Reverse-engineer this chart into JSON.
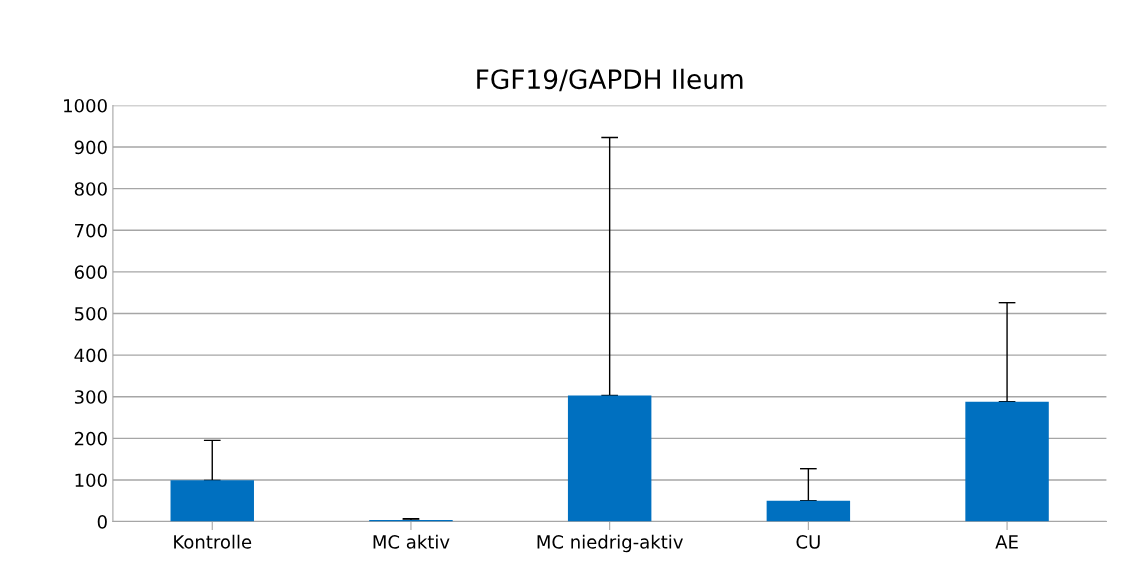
{
  "chart_data": {
    "type": "bar",
    "title": "FGF19/GAPDH Ileum",
    "categories": [
      "Kontrolle",
      "MC aktiv",
      "MC niedrig-aktiv",
      "CU",
      "AE"
    ],
    "values": [
      99,
      4,
      303,
      50,
      288
    ],
    "errors": [
      [
        99,
        195
      ],
      [
        4,
        7
      ],
      [
        303,
        923
      ],
      [
        50,
        127
      ],
      [
        288,
        526
      ]
    ],
    "color": "#0070c0",
    "ylim": [
      0,
      1000
    ],
    "yticks": [
      0,
      100,
      200,
      300,
      400,
      500,
      600,
      700,
      800,
      900,
      1000
    ],
    "grid": "y"
  }
}
